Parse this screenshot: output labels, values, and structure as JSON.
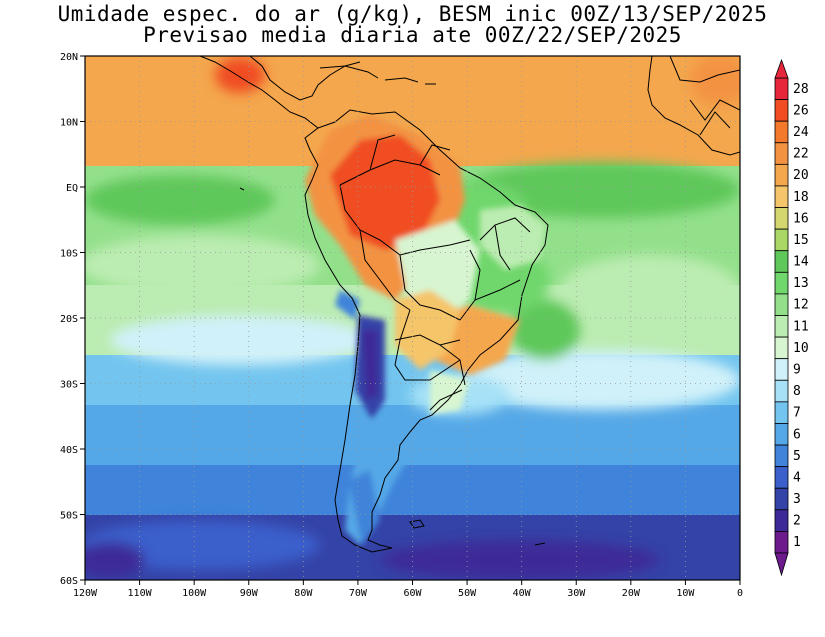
{
  "title": {
    "line1": "Umidade espec. do ar (g/kg), BESM inic 00Z/13/SEP/2025",
    "line2": "Previsao media diaria ate 00Z/22/SEP/2025"
  },
  "map": {
    "lat_labels": [
      "20N",
      "10N",
      "EQ",
      "10S",
      "20S",
      "30S",
      "40S",
      "50S",
      "60S"
    ],
    "lon_labels": [
      "120W",
      "110W",
      "100W",
      "90W",
      "80W",
      "70W",
      "60W",
      "50W",
      "40W",
      "30W",
      "20W",
      "10W",
      "0"
    ],
    "lat_range": [
      -60,
      20
    ],
    "lon_range": [
      -120,
      0
    ],
    "grid": "dotted",
    "region": "South America"
  },
  "colorbar": {
    "labels": [
      "28",
      "26",
      "24",
      "22",
      "20",
      "18",
      "16",
      "15",
      "14",
      "13",
      "12",
      "11",
      "10",
      "9",
      "8",
      "7",
      "6",
      "5",
      "4",
      "3",
      "2",
      "1"
    ],
    "colors": [
      "#e5263b",
      "#f04d22",
      "#f3792b",
      "#f39342",
      "#f4a74d",
      "#f5c56b",
      "#d4d66e",
      "#a9d865",
      "#5ec85a",
      "#6fd76c",
      "#93e08b",
      "#bbecb1",
      "#d7f5d0",
      "#d0f1f9",
      "#a6e1f7",
      "#73c5ef",
      "#55a8e7",
      "#3f84da",
      "#3b5fcb",
      "#3443a7",
      "#3d2a98",
      "#6c1a8c"
    ],
    "extend": "both"
  },
  "legend_colors": {
    "ocean_deep": "#3443a7",
    "ocean_mid": "#55a8e7",
    "green": "#5ec85a",
    "orange": "#f39342",
    "red": "#f04d22"
  }
}
